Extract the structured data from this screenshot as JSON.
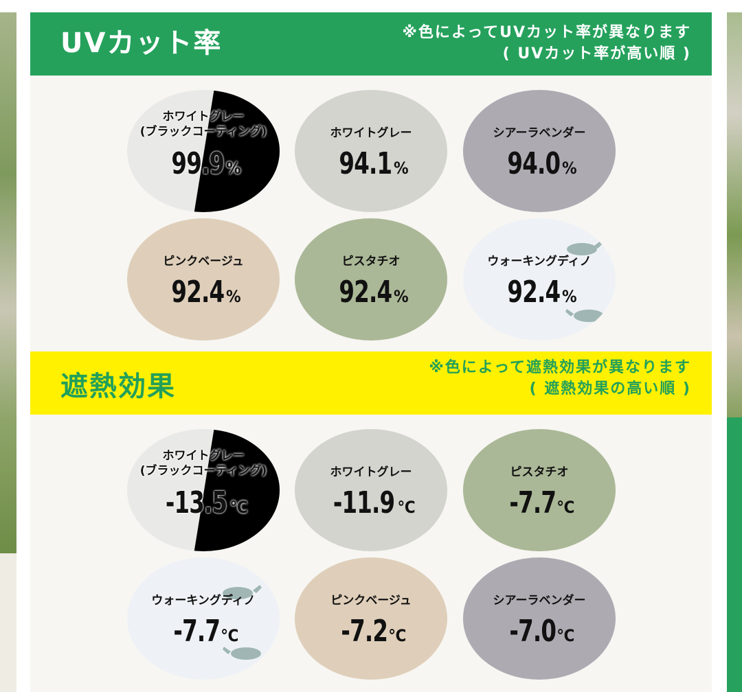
{
  "uv_section": {
    "title": "UVカット率",
    "note_line1": "※色によってUVカット率が異なります",
    "note_line2": "( UVカット率が高い順 )",
    "items": [
      {
        "name_line1": "ホワイトグレー",
        "name_line2": "(ブラックコーティング)",
        "value": "99.9",
        "unit": "%"
      },
      {
        "name_line1": "ホワイトグレー",
        "value": "94.1",
        "unit": "%"
      },
      {
        "name_line1": "シアーラベンダー",
        "value": "94.0",
        "unit": "%"
      },
      {
        "name_line1": "ピンクベージュ",
        "value": "92.4",
        "unit": "%"
      },
      {
        "name_line1": "ピスタチオ",
        "value": "92.4",
        "unit": "%"
      },
      {
        "name_line1": "ウォーキングディノ",
        "value": "92.4",
        "unit": "%"
      }
    ]
  },
  "heat_section": {
    "title": "遮熱効果",
    "note_line1": "※色によって遮熱効果が異なります",
    "note_line2": "( 遮熱効果の高い順 )",
    "items": [
      {
        "name_line1": "ホワイトグレー",
        "name_line2": "(ブラックコーティング)",
        "value": "-13.5",
        "unit": "℃"
      },
      {
        "name_line1": "ホワイトグレー",
        "value": "-11.9",
        "unit": "℃"
      },
      {
        "name_line1": "ピスタチオ",
        "value": "-7.7",
        "unit": "℃"
      },
      {
        "name_line1": "ウォーキングディノ",
        "value": "-7.7",
        "unit": "℃"
      },
      {
        "name_line1": "ピンクベージュ",
        "value": "-7.2",
        "unit": "℃"
      },
      {
        "name_line1": "シアーラベンダー",
        "value": "-7.0",
        "unit": "℃"
      }
    ]
  },
  "colors": {
    "green": "#25a15c",
    "yellow": "#fff100",
    "panel_bg": "#f7f6f2",
    "white_gray": "#d4d4cf",
    "sheer_lavender": "#aeaab2",
    "pink_beige": "#dfcfba",
    "pistachio": "#abb897",
    "walking_dino": "#eef2f6",
    "black_coating": "#000000"
  }
}
